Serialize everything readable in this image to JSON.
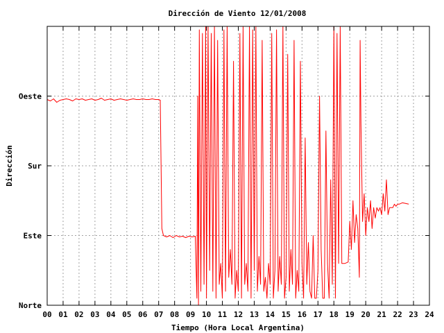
{
  "chart_data": {
    "type": "line",
    "title": "Dirección de Viento 12/01/2008",
    "xlabel": "Tiempo (Hora Local Argentina)",
    "ylabel": "Dirección",
    "xlim": [
      0,
      24
    ],
    "ylim": [
      0,
      4
    ],
    "x_ticks": [
      0,
      1,
      2,
      3,
      4,
      5,
      6,
      7,
      8,
      9,
      10,
      11,
      12,
      13,
      14,
      15,
      16,
      17,
      18,
      19,
      20,
      21,
      22,
      23,
      24
    ],
    "x_tick_labels": [
      "00",
      "01",
      "02",
      "03",
      "04",
      "05",
      "06",
      "07",
      "08",
      "09",
      "10",
      "11",
      "12",
      "13",
      "14",
      "15",
      "16",
      "17",
      "18",
      "19",
      "20",
      "21",
      "22",
      "23",
      "24"
    ],
    "y_ticks": [
      0,
      1,
      2,
      3
    ],
    "y_tick_labels": [
      "Norte",
      "Este",
      "Sur",
      "Oeste"
    ],
    "grid": true,
    "series": [
      {
        "color": "#ff0000",
        "points": [
          [
            0.0,
            2.95
          ],
          [
            0.2,
            2.93
          ],
          [
            0.4,
            2.96
          ],
          [
            0.6,
            2.91
          ],
          [
            0.8,
            2.94
          ],
          [
            1.0,
            2.95
          ],
          [
            1.2,
            2.96
          ],
          [
            1.4,
            2.95
          ],
          [
            1.6,
            2.93
          ],
          [
            1.8,
            2.96
          ],
          [
            2.0,
            2.95
          ],
          [
            2.2,
            2.96
          ],
          [
            2.4,
            2.94
          ],
          [
            2.6,
            2.95
          ],
          [
            2.8,
            2.96
          ],
          [
            3.0,
            2.94
          ],
          [
            3.2,
            2.95
          ],
          [
            3.4,
            2.97
          ],
          [
            3.6,
            2.94
          ],
          [
            3.8,
            2.95
          ],
          [
            4.0,
            2.96
          ],
          [
            4.2,
            2.94
          ],
          [
            4.4,
            2.95
          ],
          [
            4.6,
            2.96
          ],
          [
            4.8,
            2.95
          ],
          [
            5.0,
            2.94
          ],
          [
            5.2,
            2.95
          ],
          [
            5.4,
            2.96
          ],
          [
            5.6,
            2.95
          ],
          [
            5.8,
            2.95
          ],
          [
            6.0,
            2.96
          ],
          [
            6.2,
            2.95
          ],
          [
            6.4,
            2.95
          ],
          [
            6.6,
            2.96
          ],
          [
            6.8,
            2.95
          ],
          [
            7.0,
            2.95
          ],
          [
            7.1,
            2.94
          ],
          [
            7.15,
            2.0
          ],
          [
            7.2,
            1.1
          ],
          [
            7.3,
            1.0
          ],
          [
            7.5,
            0.98
          ],
          [
            7.7,
            1.0
          ],
          [
            7.9,
            0.97
          ],
          [
            8.1,
            1.0
          ],
          [
            8.3,
            0.98
          ],
          [
            8.5,
            0.99
          ],
          [
            8.7,
            0.97
          ],
          [
            8.9,
            0.99
          ],
          [
            9.1,
            0.98
          ],
          [
            9.3,
            0.99
          ],
          [
            9.4,
            0.1
          ],
          [
            9.45,
            3.0
          ],
          [
            9.5,
            0.0
          ],
          [
            9.55,
            3.95
          ],
          [
            9.65,
            0.2
          ],
          [
            9.75,
            3.9
          ],
          [
            9.85,
            0.3
          ],
          [
            9.95,
            4.0
          ],
          [
            10.0,
            0.1
          ],
          [
            10.1,
            4.0
          ],
          [
            10.2,
            0.5
          ],
          [
            10.3,
            3.9
          ],
          [
            10.4,
            0.2
          ],
          [
            10.5,
            4.0
          ],
          [
            10.6,
            0.1
          ],
          [
            10.7,
            3.8
          ],
          [
            10.8,
            0.3
          ],
          [
            10.9,
            0.6
          ],
          [
            11.0,
            0.1
          ],
          [
            11.1,
            3.95
          ],
          [
            11.2,
            0.2
          ],
          [
            11.3,
            4.0
          ],
          [
            11.4,
            0.4
          ],
          [
            11.5,
            0.8
          ],
          [
            11.6,
            0.3
          ],
          [
            11.7,
            3.5
          ],
          [
            11.8,
            0.1
          ],
          [
            11.9,
            0.5
          ],
          [
            12.0,
            0.2
          ],
          [
            12.1,
            3.9
          ],
          [
            12.2,
            0.1
          ],
          [
            12.3,
            4.0
          ],
          [
            12.4,
            0.3
          ],
          [
            12.5,
            0.6
          ],
          [
            12.6,
            0.2
          ],
          [
            12.7,
            4.0
          ],
          [
            12.8,
            0.1
          ],
          [
            12.9,
            3.95
          ],
          [
            13.0,
            0.5
          ],
          [
            13.1,
            4.0
          ],
          [
            13.2,
            0.2
          ],
          [
            13.3,
            0.7
          ],
          [
            13.4,
            0.3
          ],
          [
            13.5,
            3.8
          ],
          [
            13.6,
            0.2
          ],
          [
            13.7,
            0.4
          ],
          [
            13.8,
            0.1
          ],
          [
            13.9,
            0.6
          ],
          [
            14.0,
            0.3
          ],
          [
            14.1,
            3.9
          ],
          [
            14.2,
            0.1
          ],
          [
            14.3,
            0.5
          ],
          [
            14.4,
            3.95
          ],
          [
            14.5,
            0.2
          ],
          [
            14.6,
            0.7
          ],
          [
            14.7,
            0.3
          ],
          [
            14.8,
            4.0
          ],
          [
            14.9,
            0.1
          ],
          [
            15.0,
            0.4
          ],
          [
            15.1,
            3.6
          ],
          [
            15.2,
            0.2
          ],
          [
            15.3,
            0.8
          ],
          [
            15.4,
            0.3
          ],
          [
            15.5,
            3.8
          ],
          [
            15.6,
            0.1
          ],
          [
            15.7,
            0.5
          ],
          [
            15.8,
            0.2
          ],
          [
            15.9,
            3.5
          ],
          [
            16.0,
            0.6
          ],
          [
            16.1,
            0.1
          ],
          [
            16.2,
            2.4
          ],
          [
            16.3,
            0.3
          ],
          [
            16.4,
            0.9
          ],
          [
            16.5,
            0.2
          ],
          [
            16.6,
            0.1
          ],
          [
            16.7,
            1.0
          ],
          [
            16.8,
            0.1
          ],
          [
            16.9,
            0.1
          ],
          [
            17.0,
            0.5
          ],
          [
            17.1,
            3.0
          ],
          [
            17.2,
            0.8
          ],
          [
            17.3,
            0.1
          ],
          [
            17.4,
            0.1
          ],
          [
            17.5,
            2.5
          ],
          [
            17.6,
            0.6
          ],
          [
            17.7,
            0.1
          ],
          [
            17.8,
            1.8
          ],
          [
            17.9,
            0.3
          ],
          [
            18.0,
            4.0
          ],
          [
            18.1,
            0.1
          ],
          [
            18.2,
            3.9
          ],
          [
            18.3,
            0.6
          ],
          [
            18.4,
            4.0
          ],
          [
            18.5,
            0.6
          ],
          [
            18.7,
            0.6
          ],
          [
            18.9,
            0.62
          ],
          [
            19.0,
            1.2
          ],
          [
            19.1,
            0.8
          ],
          [
            19.2,
            1.5
          ],
          [
            19.3,
            0.9
          ],
          [
            19.4,
            1.3
          ],
          [
            19.5,
            1.1
          ],
          [
            19.6,
            0.4
          ],
          [
            19.65,
            3.8
          ],
          [
            19.7,
            2.6
          ],
          [
            19.8,
            1.2
          ],
          [
            19.9,
            1.6
          ],
          [
            20.0,
            1.0
          ],
          [
            20.1,
            1.4
          ],
          [
            20.2,
            1.2
          ],
          [
            20.3,
            1.5
          ],
          [
            20.4,
            1.1
          ],
          [
            20.5,
            1.4
          ],
          [
            20.6,
            1.25
          ],
          [
            20.7,
            1.4
          ],
          [
            20.8,
            1.35
          ],
          [
            20.9,
            1.4
          ],
          [
            21.0,
            1.3
          ],
          [
            21.1,
            1.6
          ],
          [
            21.2,
            1.35
          ],
          [
            21.3,
            1.8
          ],
          [
            21.4,
            1.3
          ],
          [
            21.5,
            1.4
          ],
          [
            21.6,
            1.4
          ],
          [
            21.7,
            1.4
          ],
          [
            21.8,
            1.45
          ],
          [
            21.9,
            1.42
          ],
          [
            22.0,
            1.45
          ],
          [
            22.1,
            1.45
          ],
          [
            22.3,
            1.47
          ],
          [
            22.5,
            1.46
          ],
          [
            22.7,
            1.45
          ]
        ]
      }
    ]
  }
}
